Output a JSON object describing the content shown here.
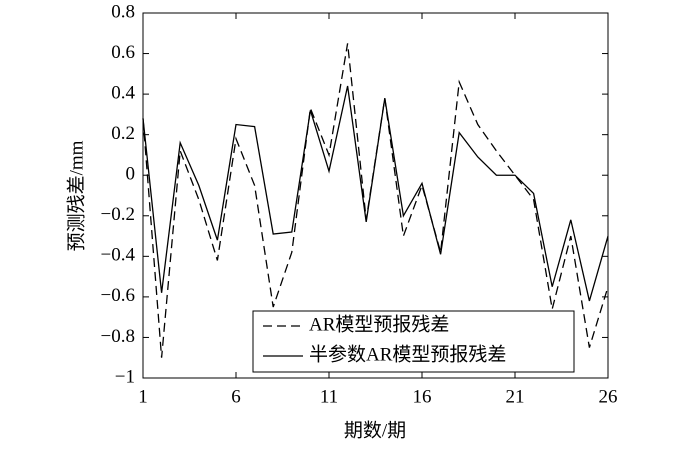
{
  "chart_data": {
    "type": "line",
    "xlabel": "期数/期",
    "ylabel": "预测残差/mm",
    "x": [
      1,
      2,
      3,
      4,
      5,
      6,
      7,
      8,
      9,
      10,
      11,
      12,
      13,
      14,
      15,
      16,
      17,
      18,
      19,
      20,
      21,
      22,
      23,
      24,
      25,
      26
    ],
    "series": [
      {
        "name": "AR模型预报残差",
        "color": "#000000",
        "dash": "dashed",
        "values": [
          0.28,
          -0.9,
          0.12,
          -0.12,
          -0.42,
          0.18,
          -0.05,
          -0.65,
          -0.38,
          0.33,
          0.1,
          0.65,
          -0.22,
          0.38,
          -0.3,
          -0.05,
          -0.38,
          0.46,
          0.25,
          0.12,
          0.0,
          -0.12,
          -0.66,
          -0.3,
          -0.85,
          -0.55
        ]
      },
      {
        "name": "半参数AR模型预报残差",
        "color": "#000000",
        "dash": "solid",
        "values": [
          0.28,
          -0.58,
          0.16,
          -0.05,
          -0.32,
          0.25,
          0.24,
          -0.29,
          -0.28,
          0.32,
          0.02,
          0.44,
          -0.23,
          0.38,
          -0.2,
          -0.04,
          -0.39,
          0.21,
          0.09,
          0.0,
          0.0,
          -0.09,
          -0.55,
          -0.22,
          -0.62,
          -0.3
        ]
      }
    ],
    "xlim": [
      1,
      26
    ],
    "xticks": [
      1,
      6,
      11,
      16,
      21,
      26
    ],
    "ylim": [
      -1,
      0.8
    ],
    "yticks": [
      {
        "value": -1,
        "label": "−1"
      },
      {
        "value": -0.8,
        "label": "−0.8"
      },
      {
        "value": -0.6,
        "label": "−0.6"
      },
      {
        "value": -0.4,
        "label": "−0.4"
      },
      {
        "value": -0.2,
        "label": "−0.2"
      },
      0,
      0.2,
      0.4,
      0.6,
      0.8
    ],
    "grid": false,
    "legend": "lower right"
  }
}
